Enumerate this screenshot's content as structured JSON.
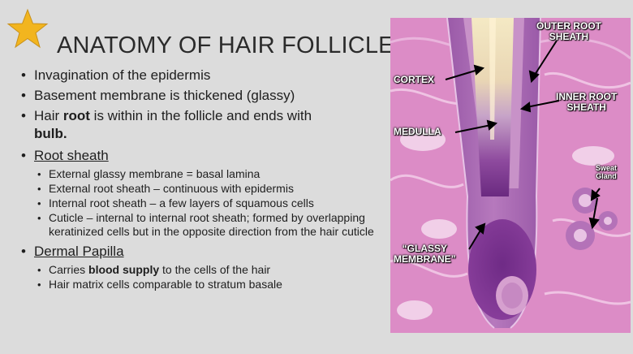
{
  "slide": {
    "title": "ANATOMY OF HAIR FOLLICLE",
    "bullets": {
      "b1": "Invagination of the epidermis",
      "b2": "Basement membrane is thickened (glassy)",
      "b3_pre": "Hair ",
      "b3_bold": "root",
      "b3_post": " is within in the follicle and ends with",
      "b3_bold2": "bulb.",
      "root_sheath": "Root sheath",
      "rs1": "External glassy membrane = basal lamina",
      "rs2": "External root sheath  – continuous with epidermis",
      "rs3": "Internal root sheath – a few layers of squamous cells",
      "rs4": "Cuticle – internal to internal root sheath; formed by overlapping keratinized cells but in the opposite direction from the hair cuticle",
      "dermal_papilla": "Dermal Papilla",
      "dp1_pre": "Carries ",
      "dp1_bold": "blood supply",
      "dp1_post": " to the cells of the hair",
      "dp2": "Hair matrix cells comparable to stratum basale"
    }
  },
  "image_labels": {
    "outer_root_sheath_1": "OUTER ROOT",
    "outer_root_sheath_2": "SHEATH",
    "cortex": "CORTEX",
    "inner_root_sheath_1": "INNER ROOT",
    "inner_root_sheath_2": "SHEATH",
    "medulla": "MEDULLA",
    "sweat_gland_1": "Sweat",
    "sweat_gland_2": "Gland",
    "glassy_membrane_1": "“GLASSY",
    "glassy_membrane_2": "MEMBRANE”"
  },
  "colors": {
    "background": "#dcdcdc",
    "star": "#f2b51f",
    "tissue_pink": "#dc8cc6",
    "follicle_purple": "#7a2e8e"
  },
  "icons": {
    "star": "star-icon"
  }
}
